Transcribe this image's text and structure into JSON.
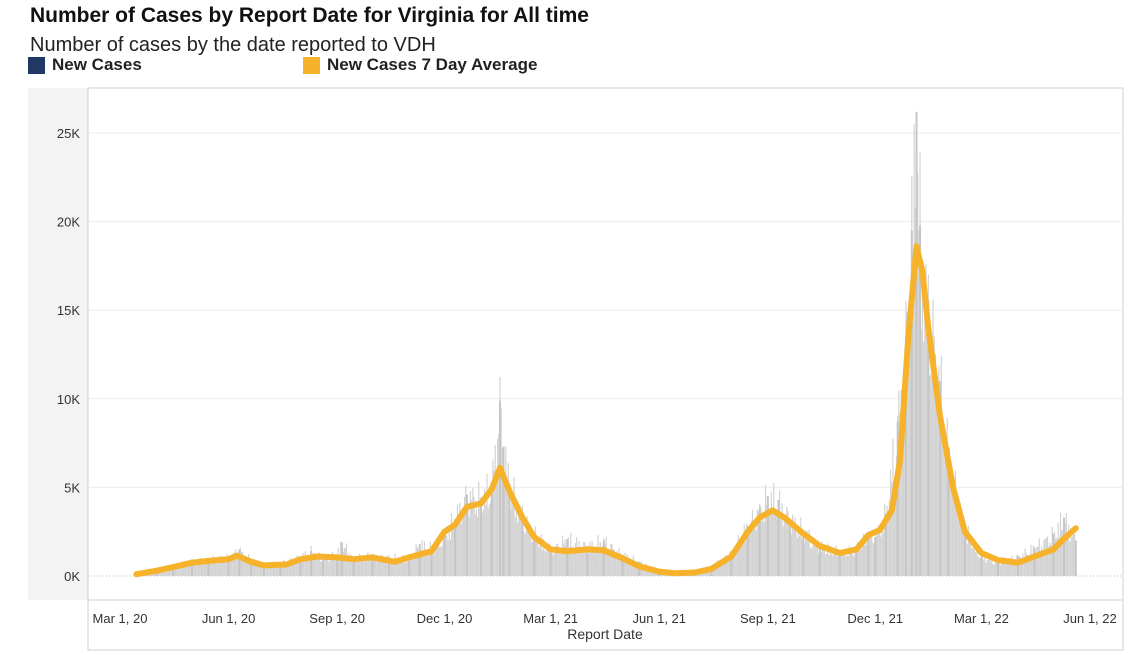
{
  "header": {
    "title": "Number of Cases by Report Date for Virginia for All time",
    "subtitle": "Number of cases by the date reported to VDH"
  },
  "legend": [
    {
      "label": "New Cases",
      "color": "#1f3864"
    },
    {
      "label": "New Cases 7 Day Average",
      "color": "#f6b22a"
    }
  ],
  "chart_data": {
    "type": "bar",
    "title": "Number of Cases by Report Date for Virginia for All time",
    "subtitle": "Number of cases by the date reported to VDH",
    "xlabel": "Report Date",
    "ylabel": "",
    "x_range": [
      "2020-03-01",
      "2022-06-01"
    ],
    "ylim": [
      0,
      28000
    ],
    "x_ticks": [
      {
        "label": "Mar 1, 20",
        "date": "2020-03-01"
      },
      {
        "label": "Jun 1, 20",
        "date": "2020-06-01"
      },
      {
        "label": "Sep 1, 20",
        "date": "2020-09-01"
      },
      {
        "label": "Dec 1, 20",
        "date": "2020-12-01"
      },
      {
        "label": "Mar 1, 21",
        "date": "2021-03-01"
      },
      {
        "label": "Jun 1, 21",
        "date": "2021-06-01"
      },
      {
        "label": "Sep 1, 21",
        "date": "2021-09-01"
      },
      {
        "label": "Dec 1, 21",
        "date": "2021-12-01"
      },
      {
        "label": "Mar 1, 22",
        "date": "2022-03-01"
      },
      {
        "label": "Jun 1, 22",
        "date": "2022-06-01"
      }
    ],
    "y_ticks": [
      {
        "label": "0K",
        "value": 0
      },
      {
        "label": "5K",
        "value": 5000
      },
      {
        "label": "10K",
        "value": 10000
      },
      {
        "label": "15K",
        "value": 15000
      },
      {
        "label": "20K",
        "value": 20000
      },
      {
        "label": "25K",
        "value": 25000
      }
    ],
    "grid": true,
    "legend_position": "top-left",
    "series": [
      {
        "name": "New Cases",
        "type": "bar",
        "color": "#d3d3d3",
        "points": [
          [
            "2020-03-15",
            100
          ],
          [
            "2020-04-01",
            350
          ],
          [
            "2020-04-15",
            550
          ],
          [
            "2020-05-01",
            800
          ],
          [
            "2020-05-15",
            950
          ],
          [
            "2020-06-01",
            1050
          ],
          [
            "2020-06-10",
            1500
          ],
          [
            "2020-06-20",
            900
          ],
          [
            "2020-07-01",
            650
          ],
          [
            "2020-07-15",
            700
          ],
          [
            "2020-08-01",
            1100
          ],
          [
            "2020-08-10",
            1400
          ],
          [
            "2020-08-20",
            1050
          ],
          [
            "2020-09-01",
            1200
          ],
          [
            "2020-09-05",
            1900
          ],
          [
            "2020-09-15",
            1050
          ],
          [
            "2020-10-01",
            1100
          ],
          [
            "2020-10-15",
            1050
          ],
          [
            "2020-11-01",
            1000
          ],
          [
            "2020-11-10",
            1800
          ],
          [
            "2020-11-20",
            1600
          ],
          [
            "2020-12-01",
            2400
          ],
          [
            "2020-12-10",
            3200
          ],
          [
            "2020-12-20",
            4600
          ],
          [
            "2021-01-01",
            4400
          ],
          [
            "2021-01-10",
            5200
          ],
          [
            "2021-01-17",
            9900
          ],
          [
            "2021-01-20",
            7300
          ],
          [
            "2021-01-25",
            5200
          ],
          [
            "2021-02-05",
            3500
          ],
          [
            "2021-02-15",
            2400
          ],
          [
            "2021-03-01",
            1500
          ],
          [
            "2021-03-15",
            2100
          ],
          [
            "2021-04-01",
            1700
          ],
          [
            "2021-04-15",
            2000
          ],
          [
            "2021-05-01",
            1200
          ],
          [
            "2021-05-15",
            800
          ],
          [
            "2021-06-01",
            300
          ],
          [
            "2021-06-15",
            200
          ],
          [
            "2021-07-01",
            250
          ],
          [
            "2021-07-15",
            500
          ],
          [
            "2021-08-01",
            1300
          ],
          [
            "2021-08-15",
            2800
          ],
          [
            "2021-08-25",
            3800
          ],
          [
            "2021-09-01",
            4500
          ],
          [
            "2021-09-10",
            4300
          ],
          [
            "2021-09-20",
            3200
          ],
          [
            "2021-10-01",
            2600
          ],
          [
            "2021-10-15",
            1700
          ],
          [
            "2021-11-01",
            1400
          ],
          [
            "2021-11-15",
            1500
          ],
          [
            "2021-11-25",
            2400
          ],
          [
            "2021-12-01",
            2200
          ],
          [
            "2021-12-10",
            3500
          ],
          [
            "2021-12-20",
            8700
          ],
          [
            "2021-12-27",
            13500
          ],
          [
            "2022-01-01",
            19500
          ],
          [
            "2022-01-05",
            26200
          ],
          [
            "2022-01-08",
            19800
          ],
          [
            "2022-01-15",
            15500
          ],
          [
            "2022-01-25",
            11000
          ],
          [
            "2022-02-01",
            7000
          ],
          [
            "2022-02-15",
            2700
          ],
          [
            "2022-03-01",
            1100
          ],
          [
            "2022-03-15",
            800
          ],
          [
            "2022-04-01",
            1100
          ],
          [
            "2022-04-15",
            1600
          ],
          [
            "2022-05-01",
            2400
          ],
          [
            "2022-05-10",
            3300
          ],
          [
            "2022-05-20",
            2000
          ]
        ]
      },
      {
        "name": "New Cases 7 Day Average",
        "type": "line",
        "color": "#f6b22a",
        "points": [
          [
            "2020-03-15",
            100
          ],
          [
            "2020-04-01",
            300
          ],
          [
            "2020-04-15",
            500
          ],
          [
            "2020-05-01",
            750
          ],
          [
            "2020-05-15",
            850
          ],
          [
            "2020-06-01",
            950
          ],
          [
            "2020-06-08",
            1150
          ],
          [
            "2020-06-20",
            800
          ],
          [
            "2020-07-01",
            600
          ],
          [
            "2020-07-20",
            650
          ],
          [
            "2020-08-01",
            950
          ],
          [
            "2020-08-15",
            1100
          ],
          [
            "2020-09-01",
            1050
          ],
          [
            "2020-09-15",
            950
          ],
          [
            "2020-10-01",
            1050
          ],
          [
            "2020-10-20",
            800
          ],
          [
            "2020-11-01",
            1050
          ],
          [
            "2020-11-20",
            1400
          ],
          [
            "2020-12-01",
            2500
          ],
          [
            "2020-12-10",
            2900
          ],
          [
            "2020-12-20",
            3900
          ],
          [
            "2021-01-01",
            4100
          ],
          [
            "2021-01-10",
            4900
          ],
          [
            "2021-01-17",
            6100
          ],
          [
            "2021-01-25",
            4800
          ],
          [
            "2021-02-05",
            3300
          ],
          [
            "2021-02-15",
            2200
          ],
          [
            "2021-03-01",
            1500
          ],
          [
            "2021-03-15",
            1400
          ],
          [
            "2021-04-01",
            1500
          ],
          [
            "2021-04-15",
            1450
          ],
          [
            "2021-05-01",
            1000
          ],
          [
            "2021-05-15",
            550
          ],
          [
            "2021-06-01",
            250
          ],
          [
            "2021-06-15",
            150
          ],
          [
            "2021-07-01",
            200
          ],
          [
            "2021-07-15",
            400
          ],
          [
            "2021-08-01",
            1100
          ],
          [
            "2021-08-15",
            2500
          ],
          [
            "2021-08-25",
            3300
          ],
          [
            "2021-09-05",
            3700
          ],
          [
            "2021-09-15",
            3300
          ],
          [
            "2021-10-01",
            2400
          ],
          [
            "2021-10-15",
            1700
          ],
          [
            "2021-11-01",
            1300
          ],
          [
            "2021-11-15",
            1500
          ],
          [
            "2021-11-25",
            2300
          ],
          [
            "2021-12-05",
            2600
          ],
          [
            "2021-12-15",
            3700
          ],
          [
            "2021-12-22",
            6500
          ],
          [
            "2021-12-29",
            13500
          ],
          [
            "2022-01-05",
            18600
          ],
          [
            "2022-01-10",
            17200
          ],
          [
            "2022-01-15",
            14000
          ],
          [
            "2022-01-25",
            9000
          ],
          [
            "2022-02-05",
            5000
          ],
          [
            "2022-02-15",
            2500
          ],
          [
            "2022-03-01",
            1300
          ],
          [
            "2022-03-15",
            900
          ],
          [
            "2022-04-01",
            750
          ],
          [
            "2022-04-15",
            1100
          ],
          [
            "2022-05-01",
            1500
          ],
          [
            "2022-05-10",
            2100
          ],
          [
            "2022-05-20",
            2700
          ]
        ]
      }
    ]
  }
}
